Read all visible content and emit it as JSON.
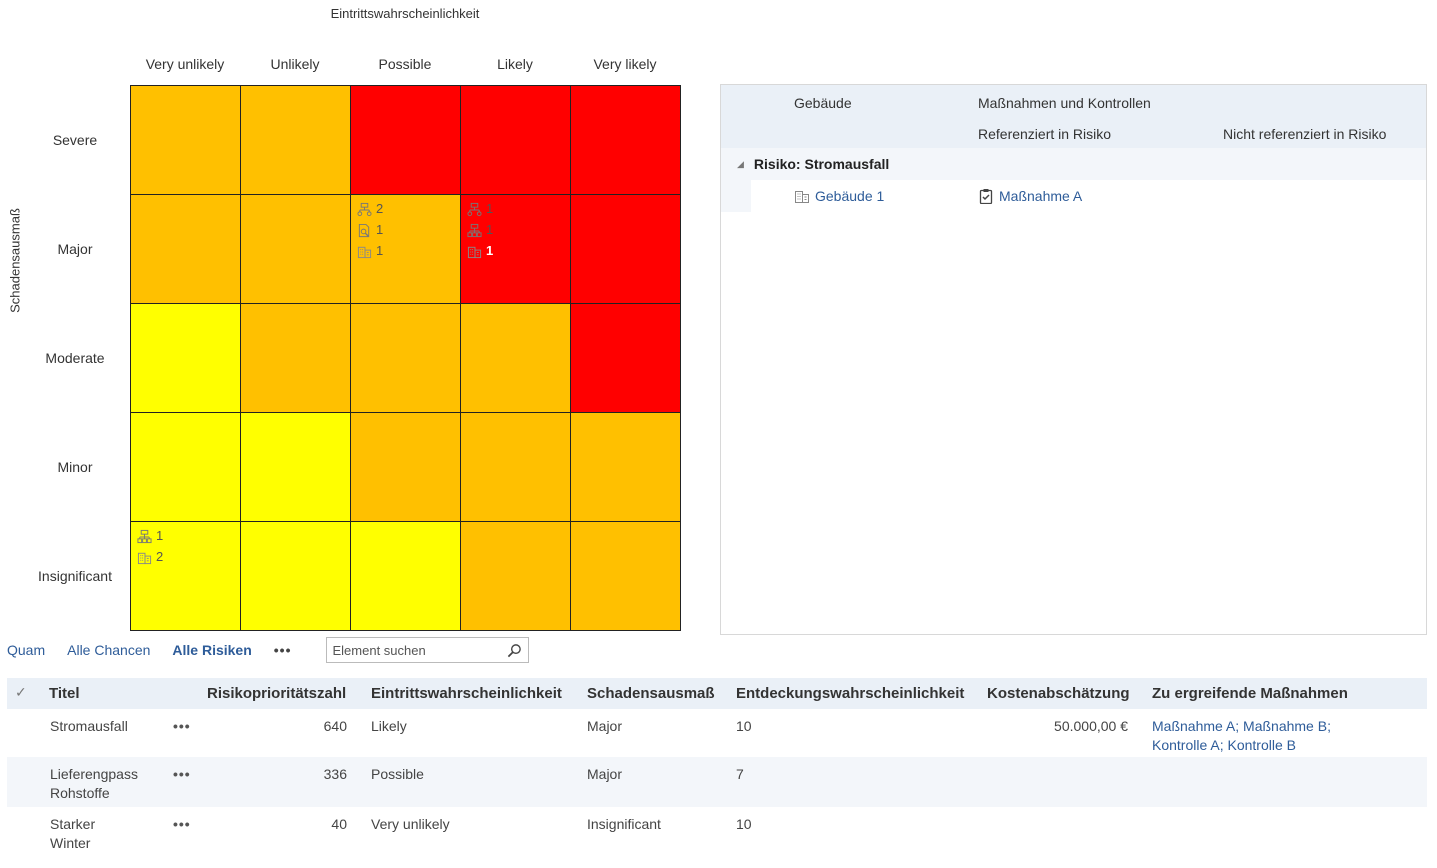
{
  "matrix": {
    "x_title": "Eintrittswahrscheinlichkeit",
    "y_title": "Schadensausmaß",
    "columns": [
      "Very unlikely",
      "Unlikely",
      "Possible",
      "Likely",
      "Very likely"
    ],
    "rows": [
      "Severe",
      "Major",
      "Moderate",
      "Minor",
      "Insignificant"
    ],
    "colors": {
      "red": "#ff0000",
      "orange": "#ffc000",
      "yellow": "#ffff00"
    },
    "cell_colors": [
      [
        "orange",
        "orange",
        "red",
        "red",
        "red"
      ],
      [
        "orange",
        "orange",
        "orange",
        "red",
        "red"
      ],
      [
        "yellow",
        "orange",
        "orange",
        "orange",
        "red"
      ],
      [
        "yellow",
        "yellow",
        "orange",
        "orange",
        "orange"
      ],
      [
        "yellow",
        "yellow",
        "yellow",
        "orange",
        "orange"
      ]
    ],
    "badges": {
      "major_possible": [
        {
          "icon": "hierarchy-icon",
          "count": "2"
        },
        {
          "icon": "document-search-icon",
          "count": "1"
        },
        {
          "icon": "building-icon",
          "count": "1"
        }
      ],
      "major_likely": [
        {
          "icon": "hierarchy-icon",
          "count": "1"
        },
        {
          "icon": "org-chart-icon",
          "count": "1"
        },
        {
          "icon": "building-icon",
          "count": "1"
        }
      ],
      "insignificant_very_unlikely": [
        {
          "icon": "org-chart-icon",
          "count": "1"
        },
        {
          "icon": "building-icon",
          "count": "2"
        }
      ]
    }
  },
  "pane": {
    "col_building": "Gebäude",
    "col_measures": "Maßnahmen und Kontrollen",
    "sub_referenced": "Referenziert in Risiko",
    "sub_not_referenced": "Nicht referenziert in Risiko",
    "group_title": "Risiko: Stromausfall",
    "building_link": "Gebäude 1",
    "measure_link": "Maßnahme A"
  },
  "toolbar": {
    "tabs": [
      "Quam",
      "Alle Chancen",
      "Alle Risiken"
    ],
    "active_tab": "Alle Risiken",
    "more": "•••",
    "search_placeholder": "Element suchen"
  },
  "table": {
    "headers": [
      "Titel",
      "Risikoprioritätszahl",
      "Eintrittswahrscheinlichkeit",
      "Schadensausmaß",
      "Entdeckungswahrscheinlichkeit",
      "Kostenabschätzung",
      "Zu ergreifende Maßnahmen"
    ],
    "rows": [
      {
        "title": "Stromausfall",
        "rpz": "640",
        "likelihood": "Likely",
        "impact": "Major",
        "detection": "10",
        "cost": "50.000,00 €",
        "measures_1": "Maßnahme A; Maßnahme B;",
        "measures_2": "Kontrolle A; Kontrolle B"
      },
      {
        "title": "Lieferengpass Rohstoffe",
        "title_1": "Lieferengpass",
        "title_2": "Rohstoffe",
        "rpz": "336",
        "likelihood": "Possible",
        "impact": "Major",
        "detection": "7",
        "cost": "",
        "measures_1": "",
        "measures_2": ""
      },
      {
        "title": "Starker Winter",
        "title_1": "Starker",
        "title_2": "Winter",
        "rpz": "40",
        "likelihood": "Very unlikely",
        "impact": "Insignificant",
        "detection": "10",
        "cost": "",
        "measures_1": "",
        "measures_2": ""
      }
    ],
    "row_menu": "•••"
  }
}
